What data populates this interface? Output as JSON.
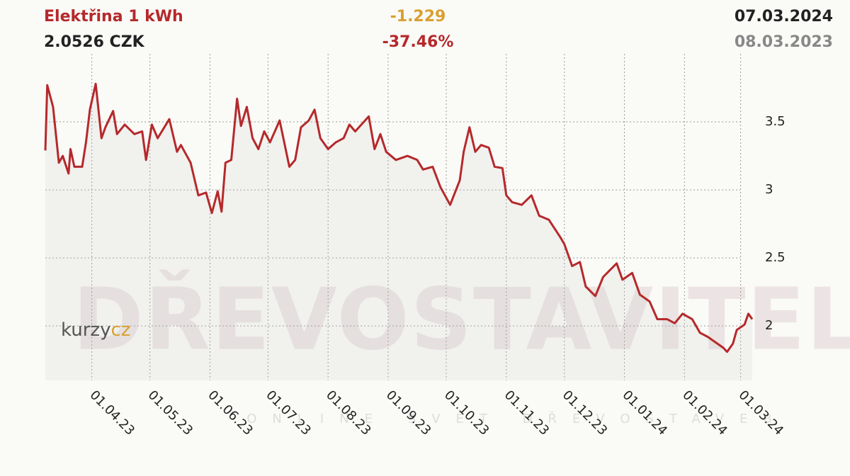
{
  "chart_data": {
    "type": "line",
    "title": "Elektřina 1 kWh",
    "price": "2.0526 CZK",
    "change": "-1.229",
    "change_percent": "-37.46%",
    "date_end": "07.03.2024",
    "date_start": "08.03.2023",
    "logo": [
      "kurzy",
      "cz"
    ],
    "watermark": "DŘEVOSTAVITEL",
    "watermark_sub": "ONLINE SVĚT DŘEVOSTAVEB",
    "x": [
      "2023-03-08",
      "2023-03-09",
      "2023-03-12",
      "2023-03-15",
      "2023-03-17",
      "2023-03-20",
      "2023-03-21",
      "2023-03-23",
      "2023-03-27",
      "2023-03-29",
      "2023-03-31",
      "2023-04-03",
      "2023-04-06",
      "2023-04-08",
      "2023-04-12",
      "2023-04-14",
      "2023-04-18",
      "2023-04-23",
      "2023-04-27",
      "2023-04-29",
      "2023-05-02",
      "2023-05-05",
      "2023-05-11",
      "2023-05-15",
      "2023-05-17",
      "2023-05-22",
      "2023-05-26",
      "2023-05-30",
      "2023-06-02",
      "2023-06-05",
      "2023-06-07",
      "2023-06-09",
      "2023-06-12",
      "2023-06-15",
      "2023-06-17",
      "2023-06-20",
      "2023-06-23",
      "2023-06-26",
      "2023-06-29",
      "2023-07-02",
      "2023-07-07",
      "2023-07-12",
      "2023-07-15",
      "2023-07-18",
      "2023-07-22",
      "2023-07-25",
      "2023-07-28",
      "2023-08-01",
      "2023-08-05",
      "2023-08-09",
      "2023-08-12",
      "2023-08-15",
      "2023-08-22",
      "2023-08-25",
      "2023-08-28",
      "2023-08-31",
      "2023-09-05",
      "2023-09-11",
      "2023-09-16",
      "2023-09-19",
      "2023-09-24",
      "2023-09-28",
      "2023-10-03",
      "2023-10-08",
      "2023-10-10",
      "2023-10-13",
      "2023-10-16",
      "2023-10-19",
      "2023-10-23",
      "2023-10-26",
      "2023-10-30",
      "2023-11-01",
      "2023-11-04",
      "2023-11-09",
      "2023-11-14",
      "2023-11-18",
      "2023-11-23",
      "2023-11-29",
      "2023-12-01",
      "2023-12-05",
      "2023-12-09",
      "2023-12-12",
      "2023-12-17",
      "2023-12-21",
      "2023-12-28",
      "2023-12-31",
      "2024-01-05",
      "2024-01-09",
      "2024-01-14",
      "2024-01-18",
      "2024-01-23",
      "2024-01-27",
      "2024-01-31",
      "2024-02-05",
      "2024-02-09",
      "2024-02-13",
      "2024-02-18",
      "2024-02-21",
      "2024-02-23",
      "2024-02-26",
      "2024-02-28",
      "2024-03-03",
      "2024-03-05",
      "2024-03-07"
    ],
    "series": [
      {
        "name": "Elektřina 1 kWh",
        "color": "#b5292b",
        "values": [
          3.29,
          3.77,
          3.61,
          3.2,
          3.25,
          3.12,
          3.3,
          3.17,
          3.17,
          3.35,
          3.59,
          3.78,
          3.38,
          3.46,
          3.58,
          3.41,
          3.48,
          3.41,
          3.43,
          3.22,
          3.48,
          3.38,
          3.52,
          3.28,
          3.33,
          3.2,
          2.96,
          2.98,
          2.83,
          2.99,
          2.84,
          3.2,
          3.22,
          3.67,
          3.47,
          3.61,
          3.38,
          3.3,
          3.43,
          3.35,
          3.51,
          3.17,
          3.22,
          3.46,
          3.51,
          3.59,
          3.38,
          3.3,
          3.35,
          3.38,
          3.48,
          3.43,
          3.54,
          3.3,
          3.41,
          3.28,
          3.22,
          3.25,
          3.22,
          3.15,
          3.17,
          3.02,
          2.89,
          3.07,
          3.28,
          3.46,
          3.28,
          3.33,
          3.31,
          3.17,
          3.16,
          2.96,
          2.91,
          2.89,
          2.96,
          2.81,
          2.78,
          2.65,
          2.6,
          2.44,
          2.47,
          2.29,
          2.22,
          2.36,
          2.46,
          2.34,
          2.39,
          2.23,
          2.18,
          2.05,
          2.05,
          2.02,
          2.09,
          2.05,
          1.95,
          1.92,
          1.87,
          1.84,
          1.81,
          1.87,
          1.97,
          2.01,
          2.09,
          2.05
        ]
      }
    ],
    "xlim": [
      "2023-03-08",
      "2024-03-07"
    ],
    "xticks": [
      {
        "value": "2023-04-01",
        "label": "01.04.23"
      },
      {
        "value": "2023-05-01",
        "label": "01.05.23"
      },
      {
        "value": "2023-06-01",
        "label": "01.06.23"
      },
      {
        "value": "2023-07-01",
        "label": "01.07.23"
      },
      {
        "value": "2023-08-01",
        "label": "01.08.23"
      },
      {
        "value": "2023-09-01",
        "label": "01.09.23"
      },
      {
        "value": "2023-10-01",
        "label": "01.10.23"
      },
      {
        "value": "2023-11-01",
        "label": "01.11.23"
      },
      {
        "value": "2023-12-01",
        "label": "01.12.23"
      },
      {
        "value": "2024-01-01",
        "label": "01.01.24"
      },
      {
        "value": "2024-02-01",
        "label": "01.02.24"
      },
      {
        "value": "2024-03-01",
        "label": "01.03.24"
      }
    ],
    "ylim": [
      1.6,
      4.0
    ],
    "yticks": [
      2,
      2.5,
      3,
      3.5
    ],
    "grid": true
  }
}
